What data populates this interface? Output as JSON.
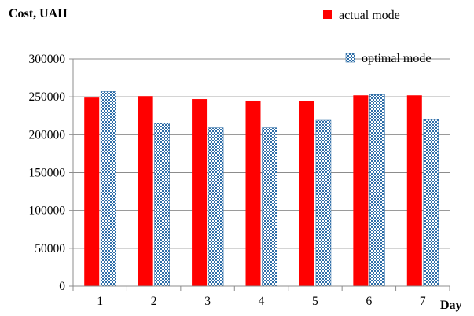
{
  "chart_data": {
    "type": "bar",
    "ylabel": "Cost, UAH",
    "xlabel": "Day",
    "categories": [
      "1",
      "2",
      "3",
      "4",
      "5",
      "6",
      "7"
    ],
    "series": [
      {
        "name": "actual mode",
        "color": "#ff0000",
        "pattern": "solid",
        "values": [
          249000,
          251000,
          247000,
          245000,
          244000,
          252000,
          252000
        ]
      },
      {
        "name": "optimal mode",
        "color": "#2f6ea8",
        "pattern": "checkered",
        "values": [
          257000,
          215000,
          209000,
          209000,
          219000,
          253000,
          220000
        ]
      }
    ],
    "ylim": [
      0,
      300000
    ],
    "yticks": [
      0,
      50000,
      100000,
      150000,
      200000,
      250000,
      300000
    ],
    "grid": true,
    "legend_position": "top-right"
  }
}
